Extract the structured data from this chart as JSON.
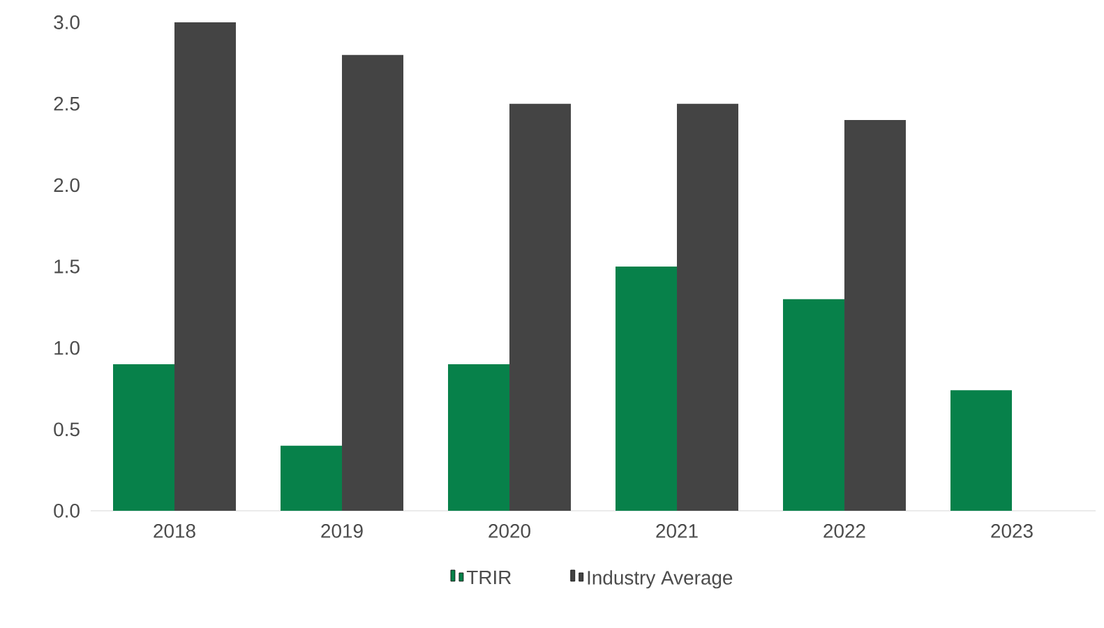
{
  "chart_data": {
    "type": "bar",
    "categories": [
      "2018",
      "2019",
      "2020",
      "2021",
      "2022",
      "2023"
    ],
    "series": [
      {
        "name": "TRIR",
        "color": "#07814a",
        "values": [
          0.9,
          0.4,
          0.9,
          1.5,
          1.3,
          0.74
        ]
      },
      {
        "name": "Industry Average",
        "color": "#444444",
        "values": [
          3.0,
          2.8,
          2.5,
          2.5,
          2.4,
          null
        ]
      }
    ],
    "ylim": [
      0,
      3
    ],
    "yticks": [
      {
        "value": 0,
        "label": "0.0"
      },
      {
        "value": 0.5,
        "label": "0.5"
      },
      {
        "value": 1,
        "label": "1.0"
      },
      {
        "value": 1.5,
        "label": "1.5"
      },
      {
        "value": 2,
        "label": "2.0"
      },
      {
        "value": 2.5,
        "label": "2.5"
      },
      {
        "value": 3,
        "label": "3.0"
      }
    ],
    "grid": false,
    "legend": "bottom"
  }
}
